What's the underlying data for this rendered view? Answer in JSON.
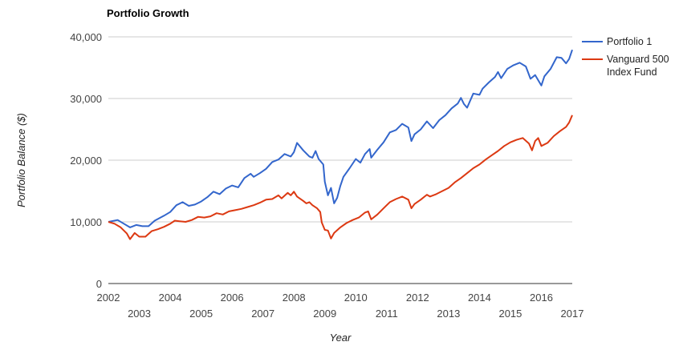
{
  "chart_data": {
    "type": "line",
    "title": "Portfolio Growth",
    "xlabel": "Year",
    "ylabel": "Portfolio Balance ($)",
    "xlim": [
      2002.0,
      2017.0
    ],
    "ylim": [
      0,
      40000
    ],
    "grid": true,
    "legend_position": "right",
    "x_ticks": [
      "2002",
      "2003",
      "2004",
      "2005",
      "2006",
      "2007",
      "2008",
      "2009",
      "2010",
      "2011",
      "2012",
      "2013",
      "2014",
      "2015",
      "2016",
      "2017"
    ],
    "y_ticks": [
      "0",
      "10,000",
      "20,000",
      "30,000",
      "40,000"
    ],
    "series": [
      {
        "name": "Portfolio 1",
        "color": "#3366cc",
        "points": [
          [
            2002.0,
            10000
          ],
          [
            2002.3,
            10300
          ],
          [
            2002.5,
            9700
          ],
          [
            2002.7,
            9100
          ],
          [
            2002.9,
            9500
          ],
          [
            2003.1,
            9300
          ],
          [
            2003.3,
            9300
          ],
          [
            2003.5,
            10200
          ],
          [
            2003.8,
            11000
          ],
          [
            2004.0,
            11600
          ],
          [
            2004.2,
            12700
          ],
          [
            2004.4,
            13200
          ],
          [
            2004.6,
            12600
          ],
          [
            2004.8,
            12800
          ],
          [
            2005.0,
            13300
          ],
          [
            2005.2,
            14000
          ],
          [
            2005.4,
            14900
          ],
          [
            2005.6,
            14500
          ],
          [
            2005.8,
            15400
          ],
          [
            2006.0,
            15900
          ],
          [
            2006.2,
            15600
          ],
          [
            2006.4,
            17100
          ],
          [
            2006.6,
            17800
          ],
          [
            2006.7,
            17300
          ],
          [
            2006.9,
            17900
          ],
          [
            2007.1,
            18600
          ],
          [
            2007.3,
            19700
          ],
          [
            2007.5,
            20100
          ],
          [
            2007.7,
            21000
          ],
          [
            2007.9,
            20600
          ],
          [
            2008.0,
            21300
          ],
          [
            2008.1,
            22800
          ],
          [
            2008.3,
            21600
          ],
          [
            2008.5,
            20600
          ],
          [
            2008.6,
            20400
          ],
          [
            2008.7,
            21500
          ],
          [
            2008.8,
            20200
          ],
          [
            2008.95,
            19300
          ],
          [
            2009.0,
            16500
          ],
          [
            2009.1,
            14300
          ],
          [
            2009.2,
            15500
          ],
          [
            2009.3,
            13000
          ],
          [
            2009.4,
            13900
          ],
          [
            2009.5,
            15800
          ],
          [
            2009.6,
            17300
          ],
          [
            2009.8,
            18700
          ],
          [
            2010.0,
            20200
          ],
          [
            2010.15,
            19600
          ],
          [
            2010.3,
            21000
          ],
          [
            2010.45,
            21800
          ],
          [
            2010.5,
            20400
          ],
          [
            2010.7,
            21700
          ],
          [
            2010.9,
            22900
          ],
          [
            2011.1,
            24500
          ],
          [
            2011.3,
            24900
          ],
          [
            2011.5,
            25900
          ],
          [
            2011.7,
            25300
          ],
          [
            2011.8,
            23100
          ],
          [
            2011.9,
            24200
          ],
          [
            2012.1,
            25000
          ],
          [
            2012.3,
            26300
          ],
          [
            2012.5,
            25200
          ],
          [
            2012.7,
            26500
          ],
          [
            2012.9,
            27300
          ],
          [
            2013.1,
            28400
          ],
          [
            2013.3,
            29200
          ],
          [
            2013.4,
            30100
          ],
          [
            2013.5,
            29100
          ],
          [
            2013.6,
            28500
          ],
          [
            2013.8,
            30800
          ],
          [
            2014.0,
            30600
          ],
          [
            2014.1,
            31600
          ],
          [
            2014.3,
            32600
          ],
          [
            2014.5,
            33500
          ],
          [
            2014.6,
            34300
          ],
          [
            2014.7,
            33300
          ],
          [
            2014.9,
            34800
          ],
          [
            2015.1,
            35400
          ],
          [
            2015.3,
            35800
          ],
          [
            2015.5,
            35200
          ],
          [
            2015.65,
            33200
          ],
          [
            2015.8,
            33800
          ],
          [
            2016.0,
            32100
          ],
          [
            2016.1,
            33600
          ],
          [
            2016.3,
            34800
          ],
          [
            2016.5,
            36700
          ],
          [
            2016.65,
            36600
          ],
          [
            2016.8,
            35700
          ],
          [
            2016.9,
            36400
          ],
          [
            2017.0,
            37900
          ]
        ]
      },
      {
        "name": "Vanguard 500 Index Fund",
        "color": "#dc3912",
        "points": [
          [
            2002.0,
            10000
          ],
          [
            2002.2,
            9700
          ],
          [
            2002.4,
            9100
          ],
          [
            2002.6,
            8100
          ],
          [
            2002.7,
            7200
          ],
          [
            2002.85,
            8200
          ],
          [
            2003.0,
            7600
          ],
          [
            2003.2,
            7600
          ],
          [
            2003.4,
            8500
          ],
          [
            2003.6,
            8800
          ],
          [
            2003.8,
            9200
          ],
          [
            2004.0,
            9700
          ],
          [
            2004.15,
            10200
          ],
          [
            2004.3,
            10100
          ],
          [
            2004.5,
            10000
          ],
          [
            2004.7,
            10300
          ],
          [
            2004.9,
            10800
          ],
          [
            2005.1,
            10700
          ],
          [
            2005.3,
            10900
          ],
          [
            2005.5,
            11400
          ],
          [
            2005.7,
            11200
          ],
          [
            2005.9,
            11700
          ],
          [
            2006.1,
            11900
          ],
          [
            2006.3,
            12100
          ],
          [
            2006.5,
            12400
          ],
          [
            2006.7,
            12700
          ],
          [
            2006.9,
            13100
          ],
          [
            2007.1,
            13600
          ],
          [
            2007.3,
            13700
          ],
          [
            2007.5,
            14300
          ],
          [
            2007.6,
            13800
          ],
          [
            2007.8,
            14700
          ],
          [
            2007.9,
            14300
          ],
          [
            2008.0,
            14900
          ],
          [
            2008.1,
            14100
          ],
          [
            2008.3,
            13400
          ],
          [
            2008.4,
            13000
          ],
          [
            2008.5,
            13200
          ],
          [
            2008.6,
            12700
          ],
          [
            2008.75,
            12200
          ],
          [
            2008.85,
            11600
          ],
          [
            2008.9,
            9900
          ],
          [
            2009.0,
            8700
          ],
          [
            2009.1,
            8600
          ],
          [
            2009.2,
            7300
          ],
          [
            2009.3,
            8200
          ],
          [
            2009.5,
            9100
          ],
          [
            2009.7,
            9800
          ],
          [
            2009.9,
            10300
          ],
          [
            2010.1,
            10700
          ],
          [
            2010.3,
            11500
          ],
          [
            2010.4,
            11700
          ],
          [
            2010.5,
            10400
          ],
          [
            2010.7,
            11200
          ],
          [
            2010.9,
            12200
          ],
          [
            2011.1,
            13200
          ],
          [
            2011.3,
            13700
          ],
          [
            2011.5,
            14100
          ],
          [
            2011.7,
            13600
          ],
          [
            2011.8,
            12200
          ],
          [
            2011.9,
            12900
          ],
          [
            2012.1,
            13600
          ],
          [
            2012.3,
            14400
          ],
          [
            2012.4,
            14100
          ],
          [
            2012.6,
            14500
          ],
          [
            2012.8,
            15000
          ],
          [
            2013.0,
            15500
          ],
          [
            2013.2,
            16400
          ],
          [
            2013.4,
            17100
          ],
          [
            2013.6,
            17900
          ],
          [
            2013.8,
            18700
          ],
          [
            2014.0,
            19300
          ],
          [
            2014.2,
            20100
          ],
          [
            2014.4,
            20800
          ],
          [
            2014.6,
            21500
          ],
          [
            2014.8,
            22300
          ],
          [
            2015.0,
            22900
          ],
          [
            2015.2,
            23300
          ],
          [
            2015.4,
            23600
          ],
          [
            2015.6,
            22700
          ],
          [
            2015.7,
            21600
          ],
          [
            2015.8,
            23100
          ],
          [
            2015.9,
            23600
          ],
          [
            2016.0,
            22300
          ],
          [
            2016.2,
            22800
          ],
          [
            2016.4,
            23900
          ],
          [
            2016.6,
            24700
          ],
          [
            2016.8,
            25400
          ],
          [
            2016.9,
            26100
          ],
          [
            2017.0,
            27300
          ]
        ]
      }
    ]
  }
}
